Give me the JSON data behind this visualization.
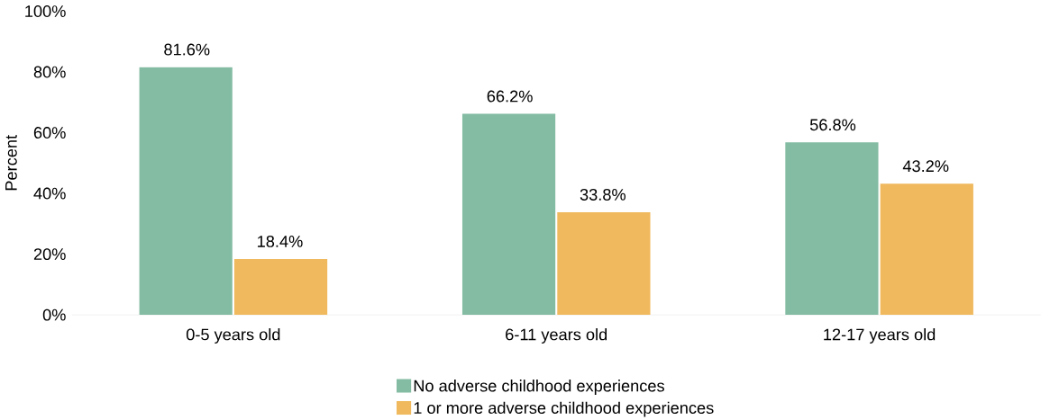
{
  "chart_data": {
    "type": "bar",
    "ylabel": "Percent",
    "categories": [
      "0-5 years old",
      "6-11 years old",
      "12-17 years old"
    ],
    "series": [
      {
        "name": "No adverse childhood experiences",
        "color": "#84bca3",
        "values": [
          81.6,
          66.2,
          56.8
        ],
        "value_labels": [
          "81.6%",
          "66.2%",
          "56.8%"
        ]
      },
      {
        "name": "1 or more adverse childhood experiences",
        "color": "#f0b95d",
        "values": [
          18.4,
          33.8,
          43.2
        ],
        "value_labels": [
          "18.4%",
          "33.8%",
          "43.2%"
        ]
      }
    ],
    "ylim": [
      0,
      100
    ],
    "yticks": [
      {
        "value": 0,
        "label": "0%"
      },
      {
        "value": 20,
        "label": "20%"
      },
      {
        "value": 40,
        "label": "40%"
      },
      {
        "value": 60,
        "label": "60%"
      },
      {
        "value": 80,
        "label": "80%"
      },
      {
        "value": 100,
        "label": "100%"
      }
    ],
    "legend": "bottom"
  }
}
